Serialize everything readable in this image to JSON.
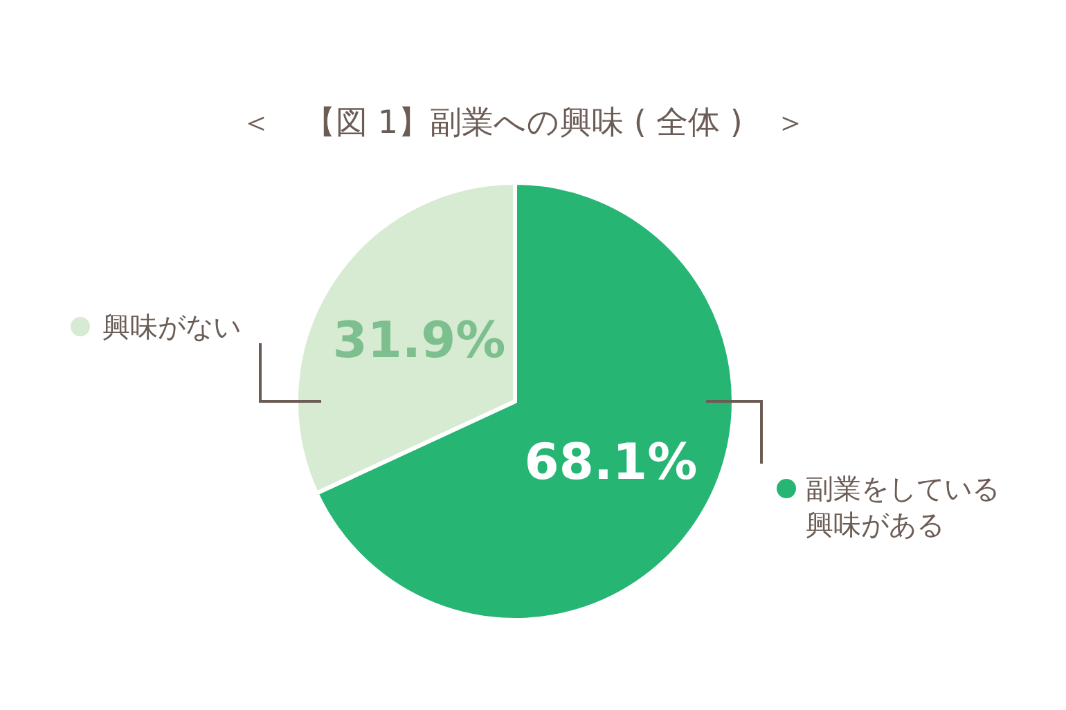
{
  "chart_data": {
    "type": "pie",
    "title": "＜　【図 1】副業への興味 ( 全体 )　＞",
    "categories": [
      "副業をしている興味がある",
      "興味がない"
    ],
    "values": [
      68.1,
      31.9
    ],
    "colors": [
      "#27b574",
      "#d6ebd1"
    ],
    "value_labels": [
      "68.1%",
      "31.9%"
    ],
    "legend": "right"
  }
}
